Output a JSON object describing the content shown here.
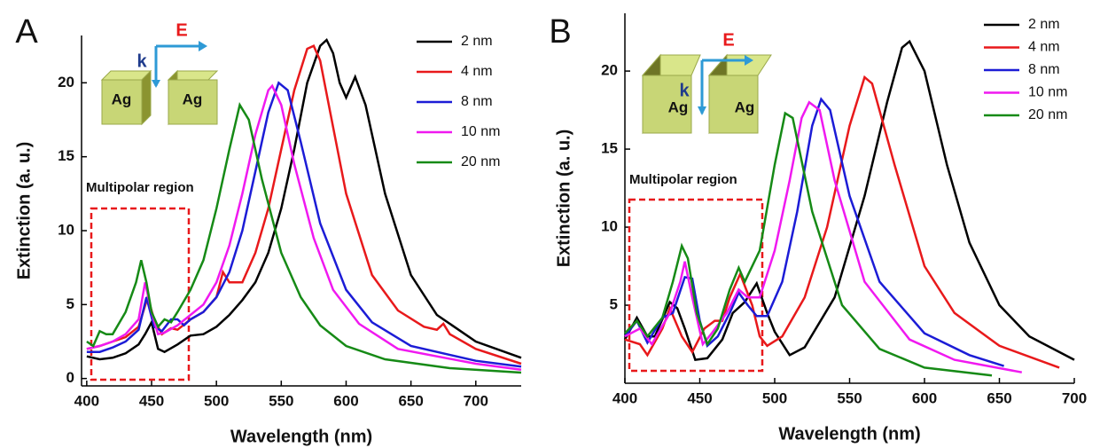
{
  "chart_data": [
    {
      "type": "line",
      "panel_label": "A",
      "xlabel": "Wavelength (nm)",
      "ylabel": "Extinction (a. u.)",
      "annotation": "Multipolar region",
      "inset": {
        "k": "k",
        "E": "E",
        "particles": [
          "Ag",
          "Ag"
        ]
      },
      "xlim": [
        396,
        735
      ],
      "ylim": [
        -0.5,
        23.2
      ],
      "xticks": [
        400,
        450,
        500,
        550,
        600,
        650,
        700
      ],
      "yticks": [
        0,
        5,
        10,
        15,
        20
      ],
      "series": [
        {
          "name": "2 nm",
          "color": "#000000",
          "x": [
            400,
            410,
            420,
            430,
            440,
            445,
            450,
            455,
            460,
            470,
            480,
            490,
            500,
            510,
            520,
            530,
            540,
            550,
            560,
            570,
            580,
            585,
            590,
            595,
            600,
            607,
            615,
            630,
            650,
            670,
            700,
            735
          ],
          "values": [
            1.5,
            1.3,
            1.4,
            1.7,
            2.3,
            3,
            3.8,
            2,
            1.8,
            2.3,
            2.9,
            3.0,
            3.5,
            4.3,
            5.3,
            6.5,
            8.5,
            11.5,
            15.5,
            20,
            22.5,
            22.9,
            22,
            20,
            19,
            20.4,
            18.5,
            12.5,
            7,
            4.3,
            2.5,
            1.4
          ]
        },
        {
          "name": "4 nm",
          "color": "#e8191b",
          "x": [
            400,
            410,
            420,
            430,
            440,
            447,
            452,
            458,
            465,
            470,
            480,
            490,
            500,
            505,
            510,
            520,
            530,
            540,
            550,
            560,
            570,
            575,
            580,
            590,
            600,
            620,
            640,
            660,
            670,
            675,
            680,
            700,
            735
          ],
          "values": [
            2.0,
            2.2,
            2.5,
            2.8,
            3.5,
            5.5,
            4.0,
            3.0,
            3.4,
            3.3,
            4.0,
            4.5,
            5.5,
            7.2,
            6.5,
            6.5,
            8.5,
            11.5,
            15.5,
            19.5,
            22.3,
            22.5,
            21.5,
            17,
            12.5,
            7,
            4.6,
            3.5,
            3.3,
            3.7,
            3.0,
            2.0,
            1.0
          ]
        },
        {
          "name": "8 nm",
          "color": "#1c1cd6",
          "x": [
            400,
            410,
            420,
            430,
            440,
            446,
            452,
            458,
            465,
            470,
            475,
            480,
            490,
            500,
            510,
            520,
            530,
            540,
            548,
            555,
            565,
            580,
            600,
            620,
            650,
            700,
            735
          ],
          "values": [
            1.8,
            1.8,
            2.1,
            2.5,
            3.3,
            5.5,
            3.5,
            3.2,
            4.0,
            4.0,
            3.6,
            4.0,
            4.5,
            5.5,
            7.2,
            10,
            14,
            18,
            20.0,
            19.5,
            16,
            10.5,
            6,
            3.8,
            2.2,
            1.2,
            0.8
          ]
        },
        {
          "name": "10 nm",
          "color": "#f019f0",
          "x": [
            400,
            410,
            420,
            430,
            440,
            445,
            450,
            455,
            460,
            470,
            480,
            490,
            500,
            510,
            520,
            530,
            540,
            543,
            550,
            560,
            575,
            590,
            610,
            640,
            700,
            735
          ],
          "values": [
            2.0,
            2.2,
            2.5,
            3.0,
            4.0,
            6.5,
            4.5,
            3.0,
            3.1,
            3.6,
            4.3,
            5.0,
            6.5,
            9,
            12.5,
            16.5,
            19.5,
            19.8,
            18.5,
            14.5,
            9.5,
            6,
            3.7,
            2.0,
            1.0,
            0.6
          ]
        },
        {
          "name": "20 nm",
          "color": "#168a16",
          "x": [
            400,
            405,
            410,
            415,
            420,
            430,
            438,
            442,
            446,
            450,
            455,
            460,
            465,
            470,
            480,
            490,
            500,
            510,
            518,
            525,
            535,
            550,
            565,
            580,
            600,
            630,
            680,
            735
          ],
          "values": [
            2.5,
            2.2,
            3.2,
            3.0,
            3.0,
            4.5,
            6.5,
            8.0,
            6.5,
            4.5,
            3.5,
            4.0,
            3.8,
            4.5,
            6.0,
            8.0,
            11.5,
            15.5,
            18.5,
            17.5,
            13.5,
            8.5,
            5.5,
            3.6,
            2.2,
            1.3,
            0.7,
            0.4
          ]
        }
      ]
    },
    {
      "type": "line",
      "panel_label": "B",
      "xlabel": "Wavelength (nm)",
      "ylabel": "Extinction (a. u.)",
      "annotation": "Multipolar region",
      "inset": {
        "k": "k",
        "E": "E",
        "particles": [
          "Ag",
          "Ag"
        ]
      },
      "xlim": [
        400,
        700
      ],
      "ylim": [
        0,
        23.7
      ],
      "xticks": [
        400,
        450,
        500,
        550,
        600,
        650,
        700
      ],
      "yticks": [
        5,
        10,
        15,
        20
      ],
      "series": [
        {
          "name": "2 nm",
          "color": "#000000",
          "x": [
            400,
            408,
            415,
            420,
            430,
            435,
            440,
            447,
            455,
            465,
            472,
            480,
            488,
            495,
            500,
            510,
            520,
            540,
            560,
            575,
            585,
            590,
            600,
            615,
            630,
            650,
            670,
            700
          ],
          "values": [
            2.8,
            4.2,
            3.0,
            3.0,
            5.2,
            4.8,
            3.5,
            1.5,
            1.6,
            2.8,
            4.5,
            5.2,
            6.4,
            4.5,
            3.3,
            1.8,
            2.3,
            5.5,
            12,
            18,
            21.5,
            21.9,
            20,
            14,
            9,
            5,
            3,
            1.5
          ]
        },
        {
          "name": "4 nm",
          "color": "#e8191b",
          "x": [
            400,
            410,
            415,
            425,
            430,
            438,
            445,
            453,
            460,
            465,
            470,
            477,
            485,
            490,
            495,
            505,
            520,
            535,
            550,
            560,
            565,
            580,
            600,
            620,
            650,
            690
          ],
          "values": [
            2.8,
            2.5,
            1.8,
            3.5,
            4.8,
            3.0,
            2.0,
            3.5,
            4.0,
            4.0,
            5.5,
            7.0,
            5.0,
            3.0,
            2.4,
            3.0,
            5.5,
            10,
            16.5,
            19.6,
            19.2,
            14,
            7.5,
            4.5,
            2.4,
            1.0
          ]
        },
        {
          "name": "8 nm",
          "color": "#1c1cd6",
          "x": [
            400,
            408,
            415,
            425,
            432,
            440,
            445,
            450,
            455,
            462,
            470,
            476,
            482,
            488,
            495,
            505,
            515,
            525,
            531,
            537,
            550,
            570,
            600,
            630,
            653
          ],
          "values": [
            3.0,
            4.0,
            2.6,
            4.2,
            4.5,
            6.8,
            6.7,
            4.0,
            2.4,
            3.0,
            4.5,
            5.8,
            5.0,
            4.3,
            4.3,
            6.5,
            11,
            16.5,
            18.2,
            17.5,
            12,
            6.5,
            3.2,
            1.8,
            1.1
          ]
        },
        {
          "name": "10 nm",
          "color": "#f019f0",
          "x": [
            400,
            410,
            418,
            430,
            437,
            440,
            445,
            452,
            458,
            468,
            476,
            482,
            490,
            500,
            510,
            518,
            523,
            530,
            540,
            560,
            590,
            620,
            665
          ],
          "values": [
            3.0,
            3.5,
            2.5,
            4.5,
            6.5,
            7.8,
            5.5,
            2.5,
            3.2,
            4.5,
            6.0,
            5.5,
            5.5,
            8.5,
            13,
            17,
            18.0,
            17.5,
            13,
            6.5,
            2.8,
            1.5,
            0.7
          ]
        },
        {
          "name": "20 nm",
          "color": "#168a16",
          "x": [
            400,
            408,
            415,
            425,
            432,
            438,
            442,
            448,
            455,
            462,
            470,
            476,
            480,
            490,
            500,
            507,
            512,
            525,
            545,
            570,
            600,
            645
          ],
          "values": [
            3.2,
            4.0,
            3.0,
            4.2,
            6.5,
            8.8,
            8.0,
            4.5,
            2.5,
            3.5,
            6.0,
            7.4,
            6.5,
            8.5,
            14,
            17.3,
            17,
            11,
            5,
            2.2,
            1.0,
            0.5
          ]
        }
      ]
    }
  ]
}
